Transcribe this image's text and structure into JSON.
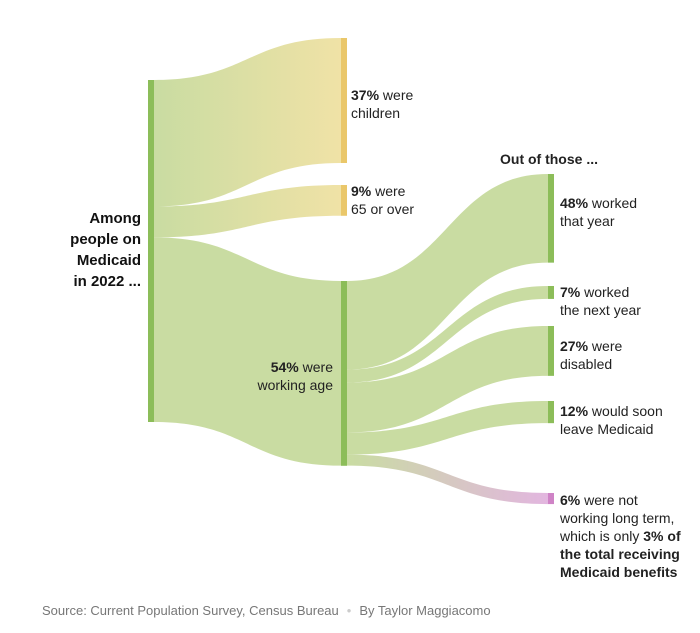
{
  "root": {
    "title_lines": [
      "Among",
      "people on",
      "Medicaid",
      "in 2022 ..."
    ],
    "value": 100
  },
  "level1": [
    {
      "id": "children",
      "pct": "37%",
      "text": " were",
      "line2": "children",
      "value": 37
    },
    {
      "id": "seniors",
      "pct": "9%",
      "text": " were",
      "line2": "65 or over",
      "value": 9
    },
    {
      "id": "working",
      "pct": "54%",
      "text": " were",
      "line2": "working age",
      "value": 54
    }
  ],
  "subheading": "Out of those ...",
  "level2": [
    {
      "id": "worked",
      "pct": "48%",
      "text": " worked",
      "line2": "that year",
      "value": 48
    },
    {
      "id": "worked-next",
      "pct": "7%",
      "text": " worked",
      "line2": "the next year",
      "value": 7
    },
    {
      "id": "disabled",
      "pct": "27%",
      "text": " were",
      "line2": "disabled",
      "value": 27
    },
    {
      "id": "leave",
      "pct": "12%",
      "text": " would soon",
      "line2": "leave Medicaid",
      "value": 12
    },
    {
      "id": "not-working",
      "pct": "6%",
      "text": " were not",
      "line2": "working long term,",
      "line3": "which is only ",
      "bold3": "3% of",
      "line4": "the total receiving",
      "line5": "Medicaid benefits",
      "value": 6
    }
  ],
  "source": {
    "text": "Source: Current Population Survey, Census Bureau",
    "separator": "•",
    "byline": "By Taylor Maggiacomo"
  },
  "colors": {
    "green_node": "#8cbd59",
    "green_flow": "#c9dca2",
    "yellow_node": "#eac76a",
    "yellow_flow": "#f0e2a6",
    "pink_node": "#cf83c6",
    "pink_flow": "#e2b6df"
  }
}
